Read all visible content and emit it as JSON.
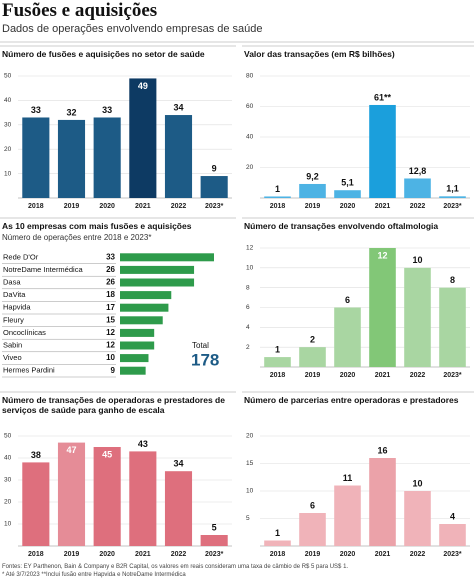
{
  "header": {
    "title": "Fusões e aquisições",
    "subtitle": "Dados de operações envolvendo empresas de saúde"
  },
  "chart_data": [
    {
      "type": "bar",
      "title": "Número de fusões e aquisições no setor de saúde",
      "categories": [
        "2018",
        "2019",
        "2020",
        "2021",
        "2022",
        "2023*"
      ],
      "values": [
        33,
        32,
        33,
        49,
        34,
        9
      ],
      "colors": [
        "#1d5b86",
        "#1d5b86",
        "#1d5b86",
        "#0d3a63",
        "#1d5b86",
        "#1d5b86"
      ],
      "ylim": [
        0,
        50
      ],
      "yticks": [
        10,
        20,
        30,
        40,
        50
      ],
      "grid": true
    },
    {
      "type": "bar",
      "title": "Valor das transações (em R$ bilhões)",
      "categories": [
        "2018",
        "2019",
        "2020",
        "2021",
        "2022",
        "2023*"
      ],
      "values": [
        1,
        9.2,
        5.1,
        61,
        12.8,
        1.1
      ],
      "value_labels": [
        "1",
        "9,2",
        "5,1",
        "61**",
        "12,8",
        "1,1"
      ],
      "colors": [
        "#4db3e4",
        "#4db3e4",
        "#4db3e4",
        "#1b9fdc",
        "#4db3e4",
        "#4db3e4"
      ],
      "ylim": [
        0,
        80
      ],
      "yticks": [
        20,
        40,
        60,
        80
      ],
      "grid": true
    },
    {
      "type": "hbar",
      "title": "As 10 empresas com mais fusões e aquisições",
      "subtitle": "Número de operações entre 2018 e 2023*",
      "categories": [
        "Rede D'Or",
        "NotreDame Intermédica",
        "Dasa",
        "DaVita",
        "Hapvida",
        "Fleury",
        "Oncoclínicas",
        "Sabin",
        "Viveo",
        "Hermes Pardini"
      ],
      "values": [
        33,
        26,
        26,
        18,
        17,
        15,
        12,
        12,
        10,
        9
      ],
      "color": "#2e9b4b",
      "total_label": "Total",
      "total": 178
    },
    {
      "type": "bar",
      "title": "Número de transações envolvendo oftalmologia",
      "categories": [
        "2018",
        "2019",
        "2020",
        "2021",
        "2022",
        "2023*"
      ],
      "values": [
        1,
        2,
        6,
        12,
        10,
        8
      ],
      "colors": [
        "#a9d6a2",
        "#a9d6a2",
        "#a9d6a2",
        "#82c777",
        "#a9d6a2",
        "#a9d6a2"
      ],
      "ylim": [
        0,
        12
      ],
      "yticks": [
        2,
        4,
        6,
        8,
        10,
        12
      ],
      "grid": true
    },
    {
      "type": "bar",
      "title": "Número de transações de operadoras e prestadores de serviços de saúde para ganho de escala",
      "categories": [
        "2018",
        "2019",
        "2020",
        "2021",
        "2022",
        "2023*"
      ],
      "values": [
        38,
        47,
        45,
        43,
        34,
        5
      ],
      "colors": [
        "#de6f7d",
        "#e58c97",
        "#de6f7d",
        "#de6f7d",
        "#de6f7d",
        "#de6f7d"
      ],
      "ylim": [
        0,
        50
      ],
      "yticks": [
        10,
        20,
        30,
        40,
        50
      ],
      "grid": true
    },
    {
      "type": "bar",
      "title": "Número de parcerias entre operadoras e prestadores",
      "categories": [
        "2018",
        "2019",
        "2020",
        "2021",
        "2022",
        "2023*"
      ],
      "values": [
        1,
        6,
        11,
        16,
        10,
        4
      ],
      "colors": [
        "#f0b3b9",
        "#f0b3b9",
        "#f0b3b9",
        "#eba2a9",
        "#f0b3b9",
        "#f0b3b9"
      ],
      "ylim": [
        0,
        20
      ],
      "yticks": [
        5,
        10,
        15,
        20
      ],
      "grid": true
    }
  ],
  "footer": {
    "source": "Fontes: EY Parthenon, Bain & Company e B2R Capital, os valores em reais consideram uma taxa de câmbio de R$ 5 para US$ 1.",
    "note": "* Até 3/7/2023 **Inclui fusão entre Hapvida e NotreDame Intermédica"
  }
}
